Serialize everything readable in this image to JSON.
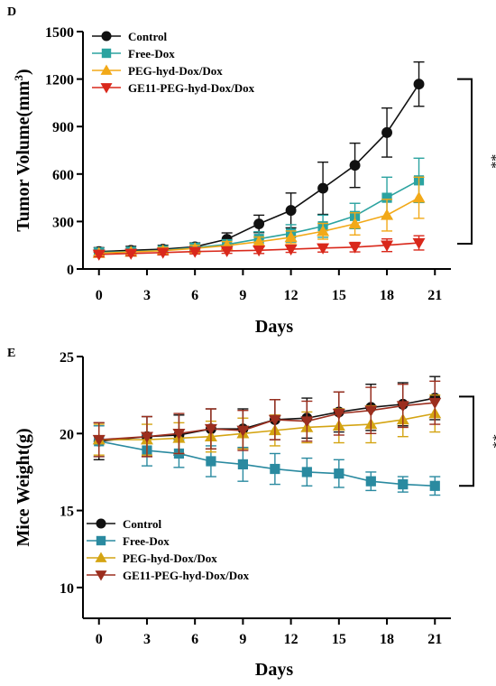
{
  "chart_data": [
    {
      "panel_label": "D",
      "type": "line",
      "xlabel": "Days",
      "ylabel": "Tumor Volume(mm",
      "ylabel_sup": "3",
      "ylabel_suffix": ")",
      "x": [
        0,
        2,
        4,
        6,
        8,
        10,
        12,
        14,
        16,
        18,
        20
      ],
      "xticks": [
        0,
        3,
        6,
        9,
        12,
        15,
        18,
        21
      ],
      "xlim": [
        -1,
        22
      ],
      "ylim": [
        0,
        1500
      ],
      "yticks": [
        0,
        300,
        600,
        900,
        1200,
        1500
      ],
      "legend_position": "top-left",
      "significance": "**",
      "significance_range": [
        160,
        1200
      ],
      "series": [
        {
          "name": "Control",
          "marker": "circle",
          "color": "#111111",
          "values": [
            110,
            118,
            125,
            140,
            188,
            285,
            370,
            510,
            655,
            862,
            1168
          ],
          "errors": [
            25,
            25,
            25,
            25,
            40,
            55,
            110,
            165,
            140,
            155,
            140
          ]
        },
        {
          "name": "Free-Dox",
          "marker": "square",
          "color": "#2ba3a0",
          "values": [
            105,
            110,
            118,
            135,
            155,
            190,
            225,
            270,
            335,
            450,
            560
          ],
          "errors": [
            20,
            20,
            20,
            25,
            30,
            45,
            55,
            70,
            80,
            130,
            140
          ]
        },
        {
          "name": "PEG-hyd-Dox/Dox",
          "marker": "triangle-up",
          "color": "#f2a918",
          "values": [
            100,
            108,
            116,
            130,
            148,
            172,
            200,
            238,
            285,
            340,
            450
          ],
          "errors": [
            15,
            15,
            20,
            20,
            25,
            30,
            40,
            50,
            70,
            100,
            130
          ]
        },
        {
          "name": "GE11-PEG-hyd-Dox/Dox",
          "marker": "triangle-down",
          "color": "#d9281b",
          "values": [
            92,
            98,
            104,
            110,
            114,
            118,
            125,
            132,
            138,
            150,
            165
          ],
          "errors": [
            15,
            15,
            15,
            15,
            15,
            20,
            20,
            25,
            30,
            40,
            45
          ]
        }
      ]
    },
    {
      "panel_label": "E",
      "type": "line",
      "xlabel": "Days",
      "ylabel": "Mice Weight(g)",
      "x": [
        0,
        3,
        5,
        7,
        9,
        11,
        13,
        15,
        17,
        19,
        21
      ],
      "xticks": [
        0,
        3,
        6,
        9,
        12,
        15,
        18,
        21
      ],
      "xlim": [
        -1,
        22
      ],
      "ylim": [
        8,
        25
      ],
      "yticks": [
        10,
        15,
        20,
        25
      ],
      "legend_position": "bottom-left",
      "significance": "**",
      "significance_range": [
        16.6,
        22.4
      ],
      "series": [
        {
          "name": "Control",
          "marker": "circle",
          "color": "#111111",
          "values": [
            19.5,
            19.8,
            19.9,
            20.3,
            20.3,
            20.9,
            21.0,
            21.4,
            21.7,
            21.9,
            22.3
          ],
          "errors": [
            1.2,
            1.3,
            1.3,
            1.3,
            1.3,
            1.3,
            1.3,
            1.3,
            1.5,
            1.4,
            1.4
          ]
        },
        {
          "name": "Free-Dox",
          "marker": "square",
          "color": "#2a8aa0",
          "values": [
            19.5,
            18.9,
            18.7,
            18.2,
            18.0,
            17.7,
            17.5,
            17.4,
            16.9,
            16.7,
            16.6
          ],
          "errors": [
            1.0,
            1.0,
            0.9,
            1.0,
            1.1,
            1.0,
            0.9,
            0.9,
            0.6,
            0.5,
            0.6
          ]
        },
        {
          "name": "PEG-hyd-Dox/Dox",
          "marker": "triangle-up",
          "color": "#d4a413",
          "values": [
            19.6,
            19.6,
            19.7,
            19.8,
            20.0,
            20.2,
            20.4,
            20.5,
            20.6,
            20.9,
            21.3
          ],
          "errors": [
            1.0,
            1.0,
            1.0,
            1.0,
            1.0,
            1.0,
            1.0,
            1.1,
            1.2,
            1.1,
            1.2
          ]
        },
        {
          "name": "GE11-PEG-hyd-Dox/Dox",
          "marker": "triangle-down",
          "color": "#9c2e1e",
          "values": [
            19.6,
            19.8,
            20.0,
            20.3,
            20.2,
            20.9,
            20.8,
            21.3,
            21.5,
            21.8,
            22.0
          ],
          "errors": [
            1.1,
            1.3,
            1.3,
            1.3,
            1.3,
            1.3,
            1.3,
            1.4,
            1.5,
            1.4,
            1.4
          ]
        }
      ]
    }
  ]
}
